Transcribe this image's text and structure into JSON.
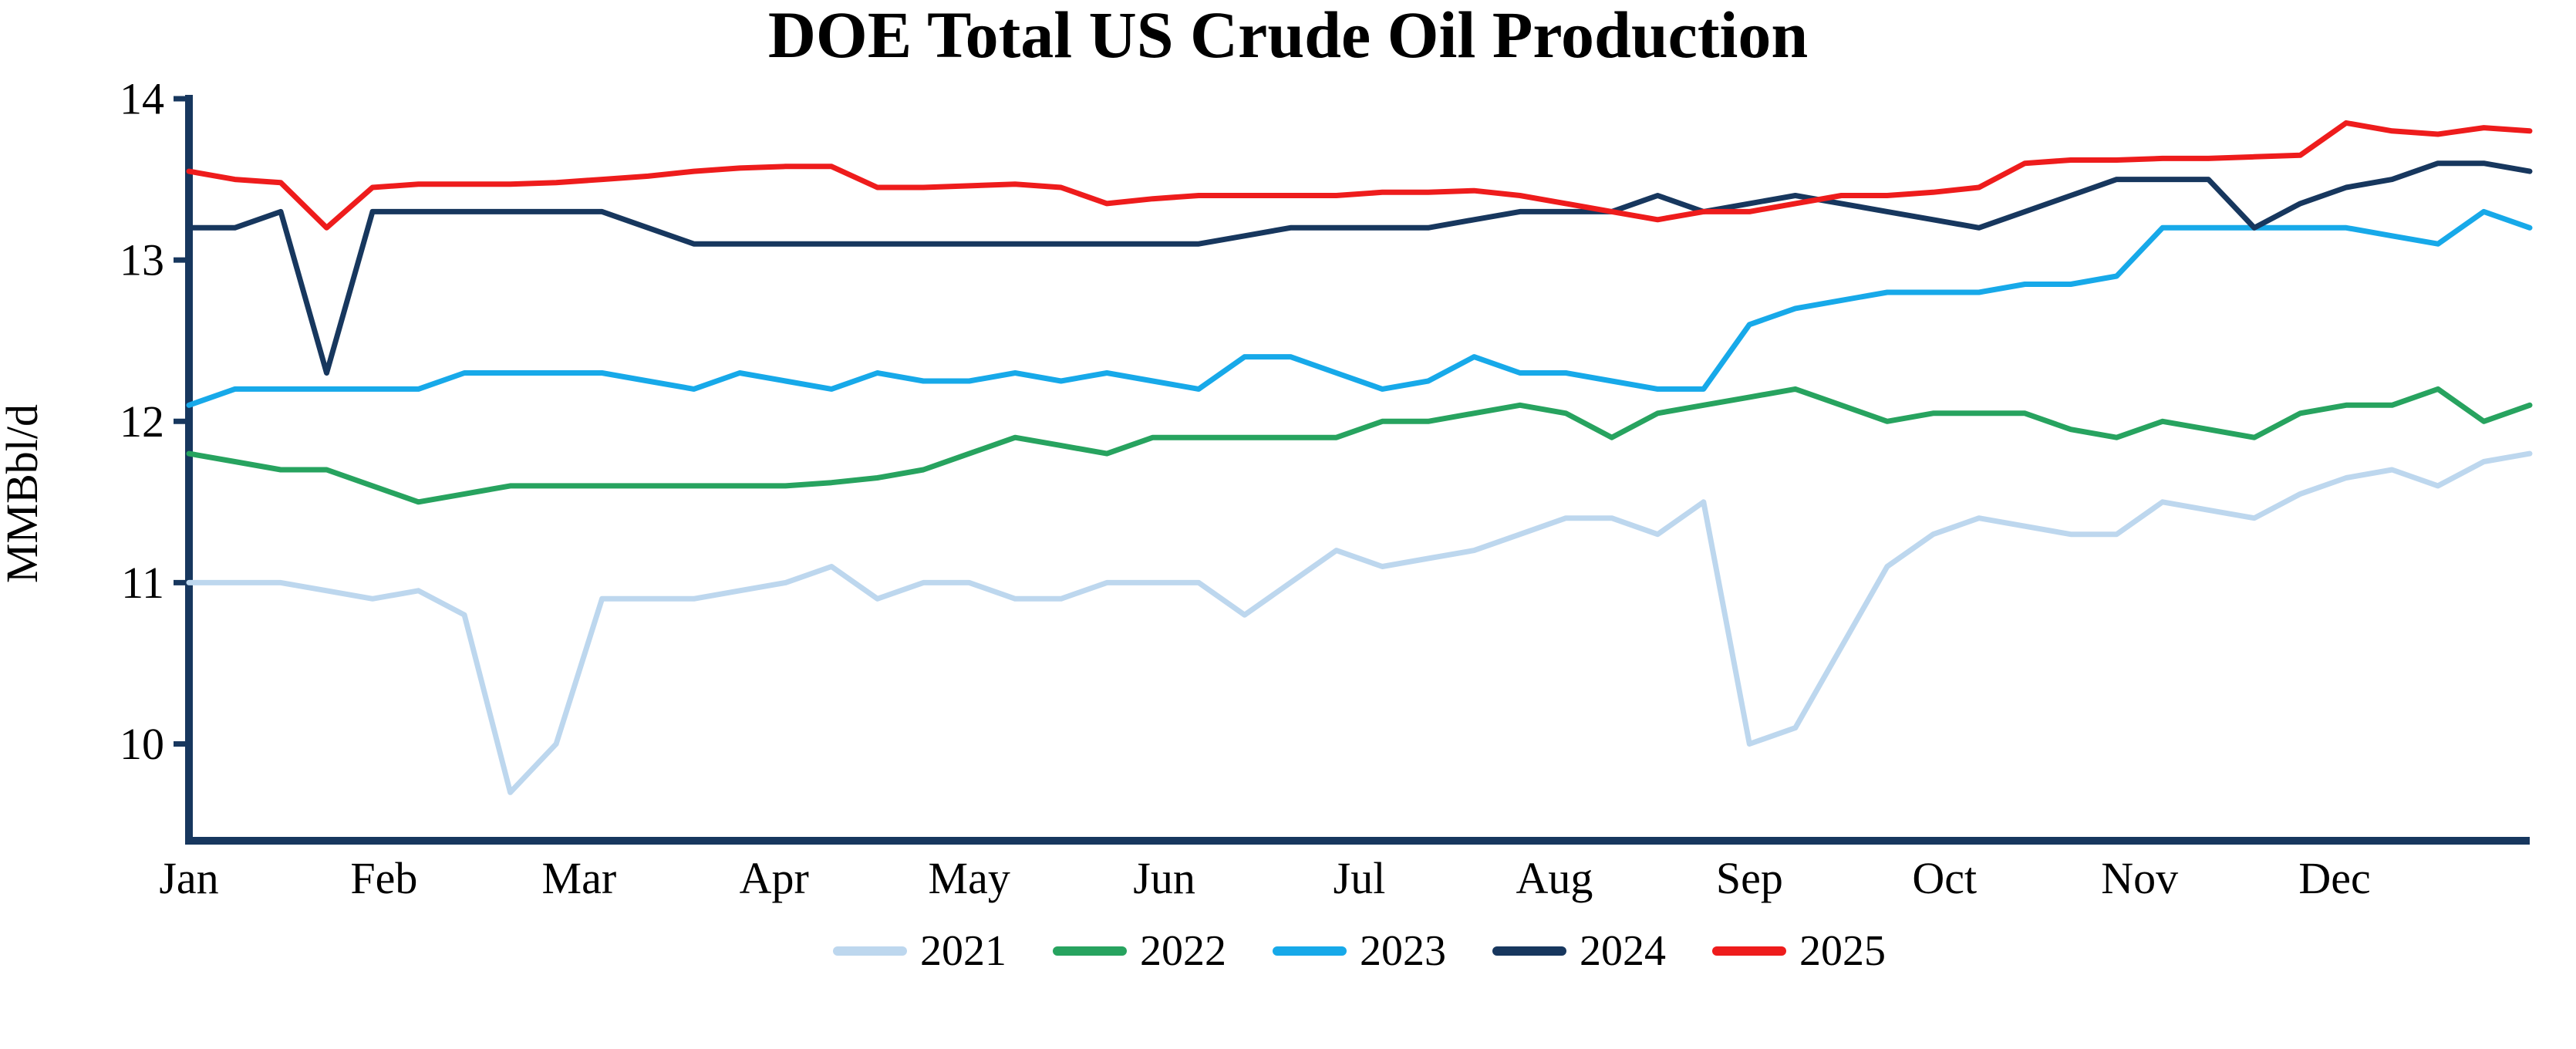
{
  "chart_data": {
    "type": "line",
    "title": "DOE Total US Crude Oil Production",
    "xlabel": "",
    "ylabel": "MMBbl/d",
    "ylim": [
      9.4,
      14
    ],
    "yticks": [
      10,
      11,
      12,
      13,
      14
    ],
    "x_unit": "week-of-year",
    "xticklabels": [
      "Jan",
      "Feb",
      "Mar",
      "Apr",
      "May",
      "Jun",
      "Jul",
      "Aug",
      "Sep",
      "Oct",
      "Nov",
      "Dec"
    ],
    "grid": false,
    "legend_position": "bottom",
    "axis_color": "#17375e",
    "series": [
      {
        "name": "2021",
        "color": "#bdd7ee",
        "values": [
          11.0,
          11.0,
          11.0,
          10.95,
          10.9,
          10.95,
          10.8,
          9.7,
          10.0,
          10.9,
          10.9,
          10.9,
          10.95,
          11.0,
          11.1,
          10.9,
          11.0,
          11.0,
          10.9,
          10.9,
          11.0,
          11.0,
          11.0,
          10.8,
          11.0,
          11.2,
          11.1,
          11.15,
          11.2,
          11.3,
          11.4,
          11.4,
          11.3,
          11.5,
          10.0,
          10.1,
          10.6,
          11.1,
          11.3,
          11.4,
          11.35,
          11.3,
          11.3,
          11.5,
          11.45,
          11.4,
          11.55,
          11.65,
          11.7,
          11.6,
          11.75,
          11.8
        ]
      },
      {
        "name": "2022",
        "color": "#27a35f",
        "values": [
          11.8,
          11.75,
          11.7,
          11.7,
          11.6,
          11.5,
          11.55,
          11.6,
          11.6,
          11.6,
          11.6,
          11.6,
          11.6,
          11.6,
          11.62,
          11.65,
          11.7,
          11.8,
          11.9,
          11.85,
          11.8,
          11.9,
          11.9,
          11.9,
          11.9,
          11.9,
          12.0,
          12.0,
          12.05,
          12.1,
          12.05,
          11.9,
          12.05,
          12.1,
          12.15,
          12.2,
          12.1,
          12.0,
          12.05,
          12.05,
          12.05,
          11.95,
          11.9,
          12.0,
          11.95,
          11.9,
          12.05,
          12.1,
          12.1,
          12.2,
          12.0,
          12.1
        ]
      },
      {
        "name": "2023",
        "color": "#17a9e9",
        "values": [
          12.1,
          12.2,
          12.2,
          12.2,
          12.2,
          12.2,
          12.3,
          12.3,
          12.3,
          12.3,
          12.25,
          12.2,
          12.3,
          12.25,
          12.2,
          12.3,
          12.25,
          12.25,
          12.3,
          12.25,
          12.3,
          12.25,
          12.2,
          12.4,
          12.4,
          12.3,
          12.2,
          12.25,
          12.4,
          12.3,
          12.3,
          12.25,
          12.2,
          12.2,
          12.6,
          12.7,
          12.75,
          12.8,
          12.8,
          12.8,
          12.85,
          12.85,
          12.9,
          13.2,
          13.2,
          13.2,
          13.2,
          13.2,
          13.15,
          13.1,
          13.3,
          13.2
        ]
      },
      {
        "name": "2024",
        "color": "#17375e",
        "values": [
          13.2,
          13.2,
          13.3,
          12.3,
          13.3,
          13.3,
          13.3,
          13.3,
          13.3,
          13.3,
          13.2,
          13.1,
          13.1,
          13.1,
          13.1,
          13.1,
          13.1,
          13.1,
          13.1,
          13.1,
          13.1,
          13.1,
          13.1,
          13.15,
          13.2,
          13.2,
          13.2,
          13.2,
          13.25,
          13.3,
          13.3,
          13.3,
          13.4,
          13.3,
          13.35,
          13.4,
          13.35,
          13.3,
          13.25,
          13.2,
          13.3,
          13.4,
          13.5,
          13.5,
          13.5,
          13.2,
          13.35,
          13.45,
          13.5,
          13.6,
          13.6,
          13.55
        ]
      },
      {
        "name": "2025",
        "color": "#ee1c1c",
        "values": [
          13.55,
          13.5,
          13.48,
          13.2,
          13.45,
          13.47,
          13.47,
          13.47,
          13.48,
          13.5,
          13.52,
          13.55,
          13.57,
          13.58,
          13.58,
          13.45,
          13.45,
          13.46,
          13.47,
          13.45,
          13.35,
          13.38,
          13.4,
          13.4,
          13.4,
          13.4,
          13.42,
          13.42,
          13.43,
          13.4,
          13.35,
          13.3,
          13.25,
          13.3,
          13.3,
          13.35,
          13.4,
          13.4,
          13.42,
          13.45,
          13.6,
          13.62,
          13.62,
          13.63,
          13.63,
          13.64,
          13.65,
          13.85,
          13.8,
          13.78,
          13.82,
          13.8
        ]
      }
    ]
  }
}
